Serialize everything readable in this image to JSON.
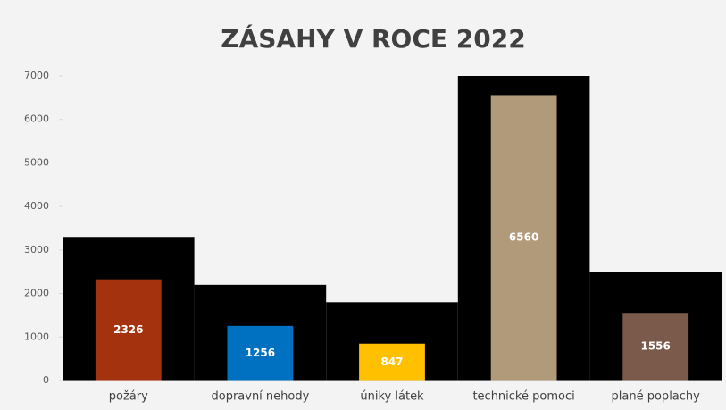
{
  "chart_data": {
    "type": "bar",
    "title": "ZÁSAHY V ROCE 2022",
    "categories": [
      "požáry",
      "dopravní nehody",
      "úniky látek",
      "technické pomoci",
      "plané poplachy"
    ],
    "series": [
      {
        "color": "#000000",
        "values": [
          3300,
          2200,
          1800,
          7000,
          2500
        ]
      },
      {
        "colors": [
          "#a5320f",
          "#0070c0",
          "#ffc000",
          "#b09a7a",
          "#7b5a4b"
        ],
        "values": [
          2326,
          1256,
          847,
          6560,
          1556
        ]
      }
    ],
    "ylim": [
      0,
      7000
    ],
    "yticks": [
      0,
      1000,
      2000,
      3000,
      4000,
      5000,
      6000,
      7000
    ]
  }
}
